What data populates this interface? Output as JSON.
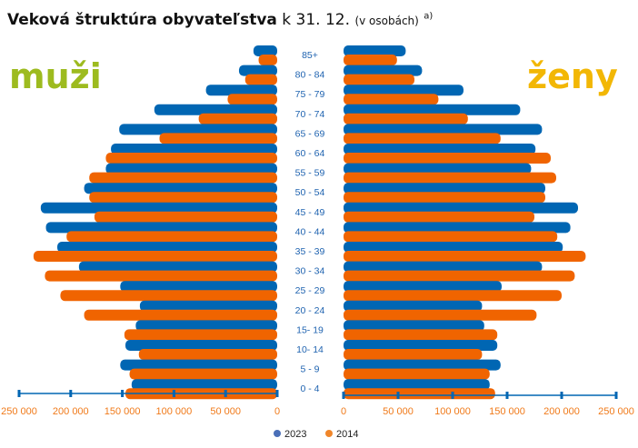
{
  "chart_data": {
    "type": "bar",
    "title": "Veková štruktúra obyvateľstva",
    "title_suffix": "k 31. 12.",
    "unit_note": "(v osobách)",
    "footnote_mark": "a)",
    "left_label": "muži",
    "right_label": "ženy",
    "categories": [
      "85+",
      "80 - 84",
      "75 - 79",
      "70 - 74",
      "65 - 69",
      "60 - 64",
      "55 - 59",
      "50 - 54",
      "45 - 49",
      "40 - 44",
      "35 - 39",
      "30 - 34",
      "25 - 29",
      "20 - 24",
      "15- 19",
      "10- 14",
      "5 - 9",
      "0 - 4"
    ],
    "series": [
      {
        "name": "2023",
        "color": "#0066b3",
        "men": [
          23000,
          37000,
          69000,
          119000,
          153000,
          161000,
          166000,
          187000,
          229000,
          224000,
          213000,
          192000,
          152000,
          133000,
          137000,
          147000,
          152000,
          141000
        ],
        "women": [
          57000,
          72000,
          110000,
          162000,
          182000,
          176000,
          172000,
          185000,
          215000,
          208000,
          201000,
          182000,
          145000,
          127000,
          129000,
          141000,
          144000,
          134000
        ]
      },
      {
        "name": "2014",
        "color": "#f06400",
        "men": [
          18000,
          31000,
          48000,
          76000,
          114000,
          166000,
          182000,
          182000,
          177000,
          204000,
          236000,
          225000,
          210000,
          187000,
          148000,
          134000,
          143000,
          147000
        ],
        "women": [
          49000,
          65000,
          87000,
          114000,
          144000,
          190000,
          195000,
          185000,
          175000,
          196000,
          222000,
          212000,
          200000,
          177000,
          141000,
          127000,
          134000,
          139000
        ]
      }
    ],
    "xlim": [
      0,
      250000
    ],
    "left_ticks": [
      "250 000",
      "200 000",
      "150 000",
      "100 000",
      "50 000",
      "0"
    ],
    "right_ticks": [
      "0",
      "50 000",
      "100 000",
      "150 000",
      "200 000",
      "250 000"
    ],
    "legend": [
      "2023",
      "2014"
    ],
    "legend_position": "bottom-center"
  }
}
